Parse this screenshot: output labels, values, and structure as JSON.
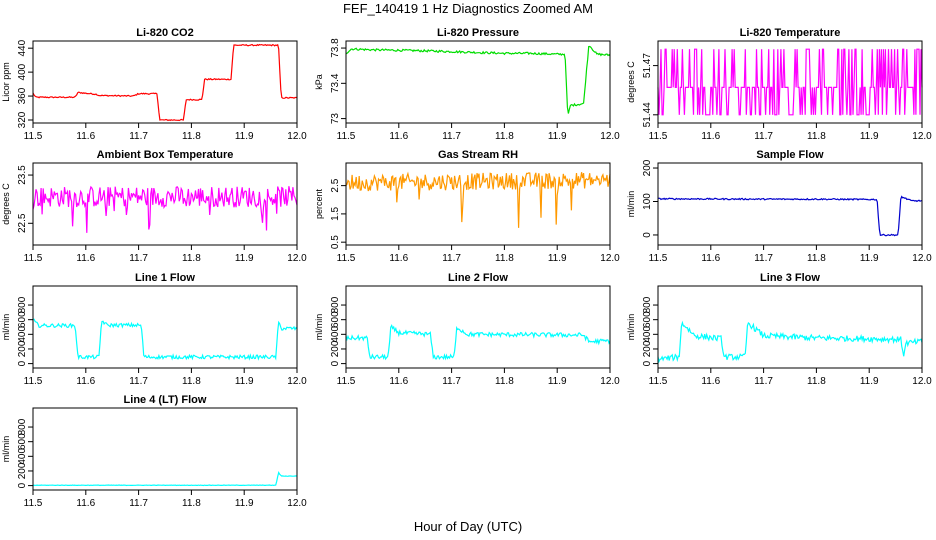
{
  "figure": {
    "title": "FEF_140419  1 Hz Diagnostics Zoomed AM",
    "xlabel": "Hour of Day (UTC)"
  },
  "chart_data": [
    {
      "type": "line",
      "title": "Li-820 CO2",
      "ylabel": "Licor ppm",
      "color": "#ff0000",
      "xlim": [
        11.5,
        12.0
      ],
      "ylim": [
        315,
        452
      ],
      "xticks": [
        11.5,
        11.6,
        11.7,
        11.8,
        11.9,
        12.0
      ],
      "yticks": [
        320,
        360,
        400,
        440
      ],
      "series": [
        {
          "name": "CO2",
          "noise": 1,
          "points": [
            [
              11.5,
              365
            ],
            [
              11.505,
              358
            ],
            [
              11.58,
              358
            ],
            [
              11.585,
              366
            ],
            [
              11.62,
              363
            ],
            [
              11.625,
              361
            ],
            [
              11.69,
              360
            ],
            [
              11.7,
              364
            ],
            [
              11.735,
              364
            ],
            [
              11.74,
              320
            ],
            [
              11.785,
              320
            ],
            [
              11.79,
              354
            ],
            [
              11.82,
              354
            ],
            [
              11.825,
              388
            ],
            [
              11.875,
              388
            ],
            [
              11.88,
              445
            ],
            [
              11.965,
              445
            ],
            [
              11.97,
              357
            ],
            [
              12.0,
              357
            ]
          ]
        }
      ]
    },
    {
      "type": "line",
      "title": "Li-820 Pressure",
      "ylabel": "kPa",
      "color": "#00dd00",
      "xlim": [
        11.5,
        12.0
      ],
      "ylim": [
        72.95,
        73.88
      ],
      "xticks": [
        11.5,
        11.6,
        11.7,
        11.8,
        11.9,
        12.0
      ],
      "yticks": [
        73.0,
        73.4,
        73.8
      ],
      "series": [
        {
          "name": "Pressure",
          "noise": 0.012,
          "points": [
            [
              11.5,
              73.74
            ],
            [
              11.51,
              73.79
            ],
            [
              11.55,
              73.78
            ],
            [
              11.64,
              73.77
            ],
            [
              11.7,
              73.76
            ],
            [
              11.8,
              73.74
            ],
            [
              11.85,
              73.74
            ],
            [
              11.9,
              73.73
            ],
            [
              11.915,
              73.73
            ],
            [
              11.92,
              73.02
            ],
            [
              11.925,
              73.15
            ],
            [
              11.95,
              73.17
            ],
            [
              11.96,
              73.84
            ],
            [
              11.975,
              73.73
            ],
            [
              12.0,
              73.72
            ]
          ]
        }
      ]
    },
    {
      "type": "line",
      "title": "Li-820 Temperature",
      "ylabel": "degrees C",
      "color": "#ff00ff",
      "xlim": [
        11.5,
        12.0
      ],
      "ylim": [
        51.435,
        51.485
      ],
      "xticks": [
        11.5,
        11.6,
        11.7,
        11.8,
        11.9,
        12.0
      ],
      "yticks": [
        51.44,
        51.47
      ],
      "series": [
        {
          "name": "Temperature",
          "levels": [
            51.44,
            51.4567,
            51.48
          ],
          "points": [
            [
              11.5,
              51.4567
            ],
            [
              12.0,
              51.4567
            ]
          ]
        }
      ]
    },
    {
      "type": "line",
      "title": "Ambient Box Temperature",
      "ylabel": "degrees C",
      "color": "#ff00ff",
      "xlim": [
        11.5,
        12.0
      ],
      "ylim": [
        22.05,
        23.75
      ],
      "xticks": [
        11.5,
        11.6,
        11.7,
        11.8,
        11.9,
        12.0
      ],
      "yticks": [
        22.5,
        23.5
      ],
      "series": [
        {
          "name": "Box Temp",
          "noise": 0.22,
          "points": [
            [
              11.5,
              23.05
            ],
            [
              12.0,
              23.05
            ]
          ]
        }
      ]
    },
    {
      "type": "line",
      "title": "Gas Stream RH",
      "ylabel": "percent",
      "color": "#ff9900",
      "xlim": [
        11.5,
        12.0
      ],
      "ylim": [
        0.4,
        3.3
      ],
      "xticks": [
        11.5,
        11.6,
        11.7,
        11.8,
        11.9,
        12.0
      ],
      "yticks": [
        0.5,
        1.5,
        2.5
      ],
      "series": [
        {
          "name": "RH",
          "noise": 0.3,
          "points": [
            [
              11.5,
              2.6
            ],
            [
              12.0,
              2.7
            ]
          ]
        }
      ]
    },
    {
      "type": "line",
      "title": "Sample Flow",
      "ylabel": "ml/min",
      "color": "#0000cc",
      "xlim": [
        11.5,
        12.0
      ],
      "ylim": [
        -30,
        215
      ],
      "xticks": [
        11.5,
        11.6,
        11.7,
        11.8,
        11.9,
        12.0
      ],
      "yticks": [
        0,
        100,
        200
      ],
      "series": [
        {
          "name": "Sample Flow",
          "noise": 2,
          "points": [
            [
              11.5,
              108
            ],
            [
              11.7,
              107
            ],
            [
              11.8,
              107
            ],
            [
              11.9,
              106
            ],
            [
              11.915,
              106
            ],
            [
              11.92,
              0
            ],
            [
              11.955,
              0
            ],
            [
              11.96,
              115
            ],
            [
              11.98,
              102
            ],
            [
              12.0,
              102
            ]
          ]
        }
      ]
    },
    {
      "type": "line",
      "title": "Line 1 Flow",
      "ylabel": "ml/min",
      "color": "#00ffff",
      "xlim": [
        11.5,
        12.0
      ],
      "ylim": [
        -60,
        1060
      ],
      "xticks": [
        11.5,
        11.6,
        11.7,
        11.8,
        11.9,
        12.0
      ],
      "yticks": [
        0,
        200,
        400,
        600,
        800
      ],
      "series": [
        {
          "name": "Line 1",
          "noise": 25,
          "points": [
            [
              11.5,
              600
            ],
            [
              11.51,
              520
            ],
            [
              11.58,
              520
            ],
            [
              11.585,
              90
            ],
            [
              11.625,
              90
            ],
            [
              11.63,
              590
            ],
            [
              11.64,
              525
            ],
            [
              11.705,
              525
            ],
            [
              11.71,
              90
            ],
            [
              11.96,
              90
            ],
            [
              11.965,
              570
            ],
            [
              11.97,
              480
            ],
            [
              12.0,
              480
            ]
          ]
        }
      ]
    },
    {
      "type": "line",
      "title": "Line 2 Flow",
      "ylabel": "ml/min",
      "color": "#00ffff",
      "xlim": [
        11.5,
        12.0
      ],
      "ylim": [
        -60,
        1060
      ],
      "xticks": [
        11.5,
        11.6,
        11.7,
        11.8,
        11.9,
        12.0
      ],
      "yticks": [
        0,
        200,
        400,
        600,
        800
      ],
      "series": [
        {
          "name": "Line 2",
          "noise": 30,
          "points": [
            [
              11.5,
              350
            ],
            [
              11.54,
              350
            ],
            [
              11.545,
              90
            ],
            [
              11.58,
              90
            ],
            [
              11.585,
              500
            ],
            [
              11.6,
              420
            ],
            [
              11.66,
              400
            ],
            [
              11.665,
              90
            ],
            [
              11.705,
              90
            ],
            [
              11.71,
              500
            ],
            [
              11.73,
              400
            ],
            [
              11.95,
              390
            ],
            [
              11.96,
              300
            ],
            [
              12.0,
              310
            ]
          ]
        }
      ]
    },
    {
      "type": "line",
      "title": "Line 3 Flow",
      "ylabel": "ml/min",
      "color": "#00ffff",
      "xlim": [
        11.5,
        12.0
      ],
      "ylim": [
        -60,
        1060
      ],
      "xticks": [
        11.5,
        11.6,
        11.7,
        11.8,
        11.9,
        12.0
      ],
      "yticks": [
        0,
        200,
        400,
        600,
        800
      ],
      "series": [
        {
          "name": "Line 3",
          "noise": 40,
          "points": [
            [
              11.5,
              60
            ],
            [
              11.54,
              90
            ],
            [
              11.545,
              560
            ],
            [
              11.57,
              380
            ],
            [
              11.62,
              340
            ],
            [
              11.625,
              90
            ],
            [
              11.665,
              90
            ],
            [
              11.67,
              560
            ],
            [
              11.7,
              380
            ],
            [
              11.8,
              350
            ],
            [
              11.9,
              340
            ],
            [
              11.96,
              330
            ],
            [
              11.965,
              120
            ],
            [
              11.97,
              280
            ],
            [
              12.0,
              300
            ]
          ]
        }
      ]
    },
    {
      "type": "line",
      "title": "Line 4 (LT) Flow",
      "ylabel": "ml/min",
      "color": "#00ffff",
      "xlim": [
        11.5,
        12.0
      ],
      "ylim": [
        -60,
        1060
      ],
      "xticks": [
        11.5,
        11.6,
        11.7,
        11.8,
        11.9,
        12.0
      ],
      "yticks": [
        0,
        200,
        400,
        600,
        800
      ],
      "series": [
        {
          "name": "Line 4",
          "noise": 3,
          "points": [
            [
              11.5,
              5
            ],
            [
              11.96,
              5
            ],
            [
              11.965,
              180
            ],
            [
              11.97,
              130
            ],
            [
              12.0,
              130
            ]
          ]
        }
      ]
    }
  ]
}
